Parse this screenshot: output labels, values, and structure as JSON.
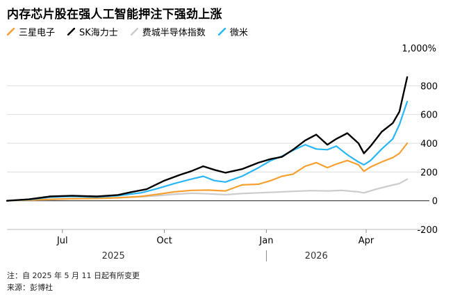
{
  "title": "内存芯片股在强人工智能押注下强劲上涨",
  "notes": {
    "line1": "注：自 2025 年 5 月 11 日起有所变更",
    "line2": "来源：彭博社"
  },
  "chart_data": {
    "type": "line",
    "yunit_label": "1,000%",
    "ylim": [
      -200,
      1000
    ],
    "yticks": [
      800,
      600,
      400,
      200,
      0,
      -200
    ],
    "ytick_labels": [
      "800",
      "600",
      "400",
      "200",
      "0",
      "-200"
    ],
    "x_start": "2025-05-12",
    "x_end": "2026-05-08",
    "xlim": [
      "2025-05-12",
      "2026-05-28"
    ],
    "xticks": [
      {
        "date": "2025-07-01",
        "label": "Jul"
      },
      {
        "date": "2025-10-01",
        "label": "Oct"
      },
      {
        "date": "2026-01-01",
        "label": "Jan"
      },
      {
        "date": "2026-04-01",
        "label": "Apr"
      }
    ],
    "years": [
      {
        "label": "2025",
        "date": "2025-08-16"
      },
      {
        "label": "2026",
        "date": "2026-02-15"
      }
    ],
    "grid": true,
    "legend_position": "top-left",
    "series": [
      {
        "name": "三星电子",
        "color": "#f5a030",
        "points": [
          [
            "2025-05-12",
            0
          ],
          [
            "2025-06-01",
            4
          ],
          [
            "2025-06-20",
            10
          ],
          [
            "2025-07-10",
            14
          ],
          [
            "2025-08-01",
            16
          ],
          [
            "2025-08-20",
            20
          ],
          [
            "2025-09-10",
            30
          ],
          [
            "2025-09-25",
            45
          ],
          [
            "2025-10-10",
            62
          ],
          [
            "2025-10-25",
            72
          ],
          [
            "2025-11-10",
            74
          ],
          [
            "2025-11-25",
            68
          ],
          [
            "2025-12-10",
            110
          ],
          [
            "2025-12-25",
            115
          ],
          [
            "2026-01-05",
            140
          ],
          [
            "2026-01-15",
            170
          ],
          [
            "2026-01-25",
            185
          ],
          [
            "2026-02-05",
            240
          ],
          [
            "2026-02-15",
            265
          ],
          [
            "2026-02-25",
            230
          ],
          [
            "2026-03-05",
            255
          ],
          [
            "2026-03-15",
            280
          ],
          [
            "2026-03-25",
            250
          ],
          [
            "2026-03-30",
            205
          ],
          [
            "2026-04-05",
            235
          ],
          [
            "2026-04-15",
            270
          ],
          [
            "2026-04-25",
            300
          ],
          [
            "2026-05-01",
            330
          ],
          [
            "2026-05-08",
            400
          ]
        ]
      },
      {
        "name": "SK海力士",
        "color": "#000000",
        "points": [
          [
            "2025-05-12",
            0
          ],
          [
            "2025-06-01",
            10
          ],
          [
            "2025-06-20",
            30
          ],
          [
            "2025-07-10",
            35
          ],
          [
            "2025-08-01",
            30
          ],
          [
            "2025-08-20",
            40
          ],
          [
            "2025-09-01",
            60
          ],
          [
            "2025-09-15",
            80
          ],
          [
            "2025-10-01",
            140
          ],
          [
            "2025-10-15",
            180
          ],
          [
            "2025-10-25",
            205
          ],
          [
            "2025-11-05",
            240
          ],
          [
            "2025-11-15",
            215
          ],
          [
            "2025-11-25",
            195
          ],
          [
            "2025-12-10",
            220
          ],
          [
            "2025-12-25",
            265
          ],
          [
            "2026-01-05",
            290
          ],
          [
            "2026-01-15",
            305
          ],
          [
            "2026-01-25",
            355
          ],
          [
            "2026-02-05",
            420
          ],
          [
            "2026-02-15",
            460
          ],
          [
            "2026-02-25",
            390
          ],
          [
            "2026-03-05",
            430
          ],
          [
            "2026-03-15",
            470
          ],
          [
            "2026-03-25",
            400
          ],
          [
            "2026-03-30",
            330
          ],
          [
            "2026-04-05",
            380
          ],
          [
            "2026-04-15",
            480
          ],
          [
            "2026-04-25",
            540
          ],
          [
            "2026-05-01",
            620
          ],
          [
            "2026-05-08",
            860
          ]
        ]
      },
      {
        "name": "费城半导体指数",
        "color": "#cccccc",
        "points": [
          [
            "2025-05-12",
            0
          ],
          [
            "2025-06-01",
            4
          ],
          [
            "2025-06-20",
            8
          ],
          [
            "2025-07-10",
            14
          ],
          [
            "2025-08-01",
            18
          ],
          [
            "2025-08-20",
            22
          ],
          [
            "2025-09-10",
            28
          ],
          [
            "2025-09-25",
            35
          ],
          [
            "2025-10-10",
            45
          ],
          [
            "2025-10-25",
            52
          ],
          [
            "2025-11-10",
            48
          ],
          [
            "2025-11-25",
            42
          ],
          [
            "2025-12-10",
            50
          ],
          [
            "2025-12-25",
            55
          ],
          [
            "2026-01-10",
            60
          ],
          [
            "2026-01-25",
            65
          ],
          [
            "2026-02-10",
            70
          ],
          [
            "2026-02-25",
            68
          ],
          [
            "2026-03-10",
            72
          ],
          [
            "2026-03-25",
            62
          ],
          [
            "2026-03-30",
            55
          ],
          [
            "2026-04-10",
            80
          ],
          [
            "2026-04-20",
            100
          ],
          [
            "2026-05-01",
            120
          ],
          [
            "2026-05-08",
            150
          ]
        ]
      },
      {
        "name": "微米",
        "color": "#29b6f6",
        "points": [
          [
            "2025-05-12",
            0
          ],
          [
            "2025-06-01",
            8
          ],
          [
            "2025-06-20",
            25
          ],
          [
            "2025-07-10",
            30
          ],
          [
            "2025-08-01",
            25
          ],
          [
            "2025-08-20",
            35
          ],
          [
            "2025-09-10",
            55
          ],
          [
            "2025-09-25",
            85
          ],
          [
            "2025-10-10",
            120
          ],
          [
            "2025-10-25",
            150
          ],
          [
            "2025-11-05",
            170
          ],
          [
            "2025-11-15",
            140
          ],
          [
            "2025-11-25",
            130
          ],
          [
            "2025-12-10",
            170
          ],
          [
            "2025-12-25",
            230
          ],
          [
            "2026-01-05",
            280
          ],
          [
            "2026-01-15",
            310
          ],
          [
            "2026-01-25",
            350
          ],
          [
            "2026-02-05",
            390
          ],
          [
            "2026-02-15",
            360
          ],
          [
            "2026-02-25",
            355
          ],
          [
            "2026-03-05",
            380
          ],
          [
            "2026-03-15",
            320
          ],
          [
            "2026-03-25",
            270
          ],
          [
            "2026-03-30",
            250
          ],
          [
            "2026-04-05",
            280
          ],
          [
            "2026-04-15",
            360
          ],
          [
            "2026-04-25",
            430
          ],
          [
            "2026-05-01",
            530
          ],
          [
            "2026-05-08",
            690
          ]
        ]
      }
    ]
  }
}
